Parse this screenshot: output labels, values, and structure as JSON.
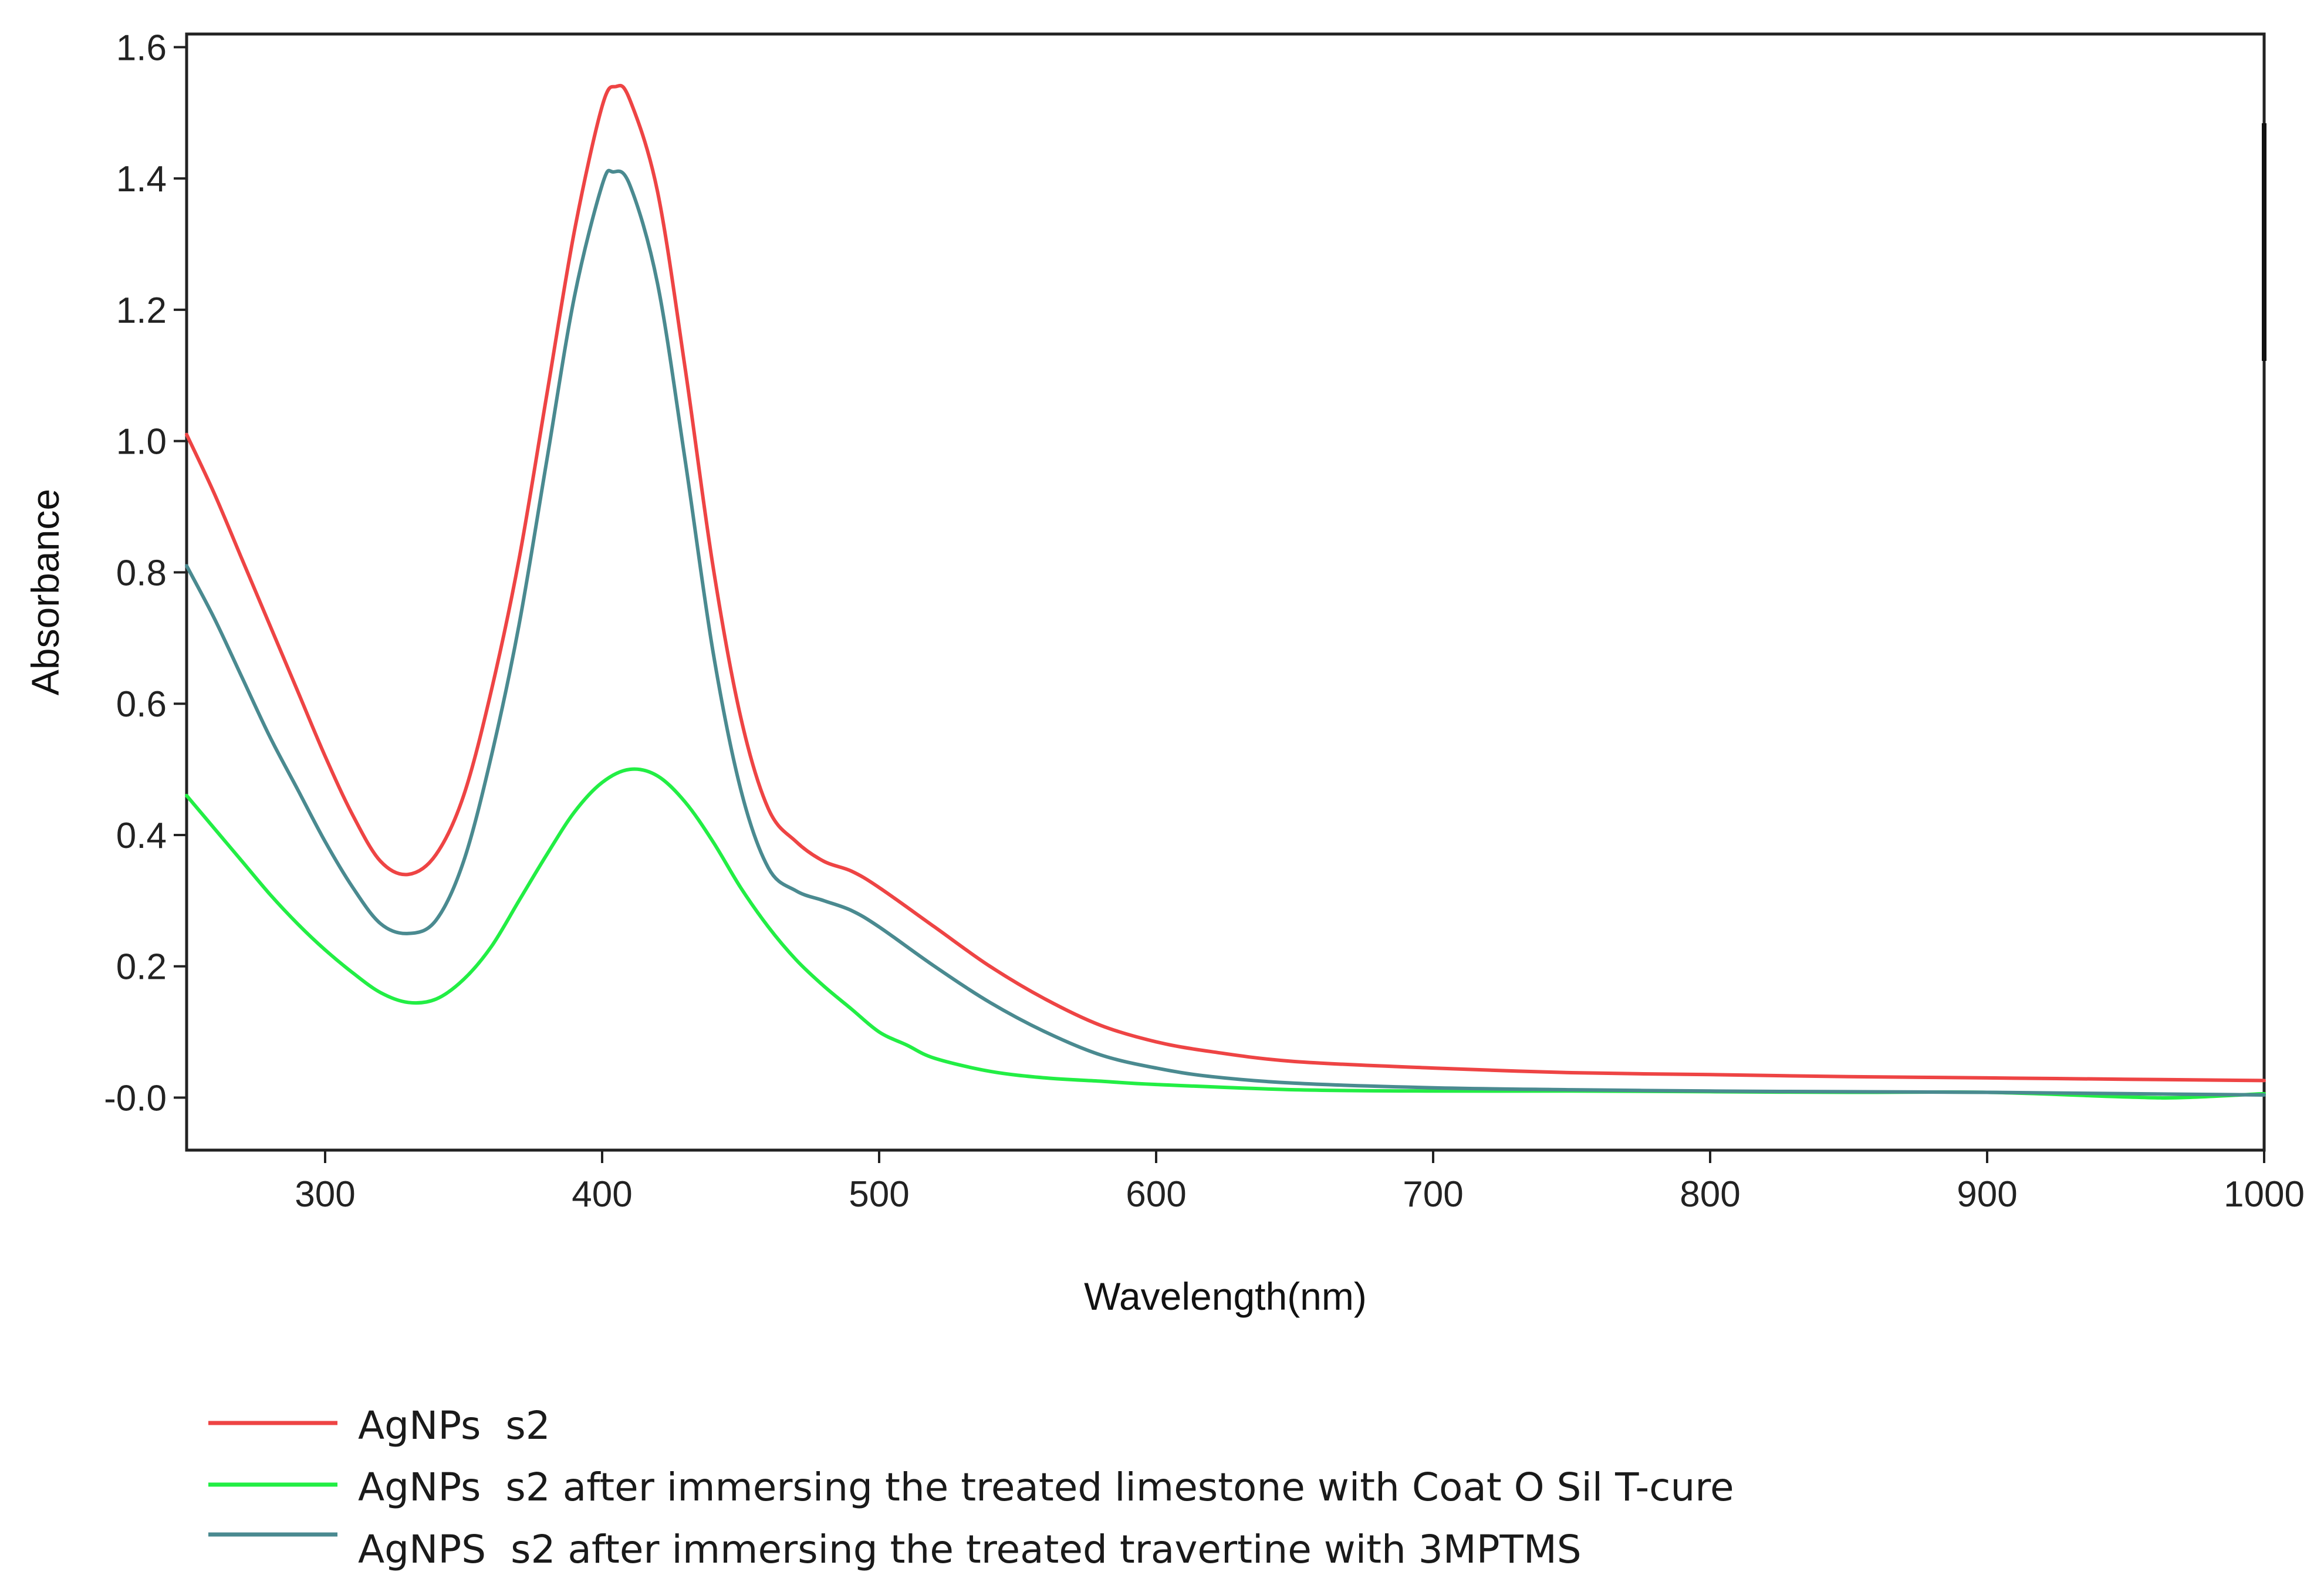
{
  "chart_data": {
    "type": "line",
    "title": "",
    "xlabel": "Wavelength(nm)",
    "ylabel": "Absorbance",
    "xlim": [
      250,
      1000
    ],
    "ylim": [
      -0.08,
      1.62
    ],
    "xticks": [
      300,
      400,
      500,
      600,
      700,
      800,
      900,
      1000
    ],
    "xtick_labels": [
      "300",
      "400",
      "500",
      "600",
      "700",
      "800",
      "900",
      "1000"
    ],
    "yticks": [
      0.0,
      0.2,
      0.4,
      0.6,
      0.8,
      1.0,
      1.2,
      1.4,
      1.6
    ],
    "ytick_labels": [
      "-0.0",
      "0.2",
      "0.4",
      "0.6",
      "0.8",
      "1.0",
      "1.2",
      "1.4",
      "1.6"
    ],
    "grid": false,
    "legend_position": "bottom",
    "series": [
      {
        "name": "AgNPs  s2",
        "color": "#ee4444",
        "points": [
          [
            250,
            1.01
          ],
          [
            260,
            0.92
          ],
          [
            270,
            0.82
          ],
          [
            280,
            0.72
          ],
          [
            290,
            0.62
          ],
          [
            300,
            0.52
          ],
          [
            310,
            0.43
          ],
          [
            320,
            0.36
          ],
          [
            330,
            0.34
          ],
          [
            340,
            0.37
          ],
          [
            350,
            0.46
          ],
          [
            360,
            0.62
          ],
          [
            370,
            0.82
          ],
          [
            380,
            1.07
          ],
          [
            390,
            1.32
          ],
          [
            400,
            1.51
          ],
          [
            405,
            1.54
          ],
          [
            410,
            1.52
          ],
          [
            420,
            1.38
          ],
          [
            430,
            1.11
          ],
          [
            440,
            0.81
          ],
          [
            450,
            0.58
          ],
          [
            460,
            0.44
          ],
          [
            470,
            0.39
          ],
          [
            480,
            0.36
          ],
          [
            490,
            0.345
          ],
          [
            500,
            0.32
          ],
          [
            520,
            0.26
          ],
          [
            540,
            0.2
          ],
          [
            560,
            0.15
          ],
          [
            580,
            0.11
          ],
          [
            600,
            0.085
          ],
          [
            620,
            0.07
          ],
          [
            650,
            0.055
          ],
          [
            700,
            0.045
          ],
          [
            750,
            0.038
          ],
          [
            800,
            0.035
          ],
          [
            850,
            0.032
          ],
          [
            900,
            0.03
          ],
          [
            950,
            0.028
          ],
          [
            1000,
            0.026
          ]
        ]
      },
      {
        "name": "AgNPs  s2 after immersing the treated limestone with Coat O Sil T-cure",
        "color": "#22ee44",
        "points": [
          [
            250,
            0.46
          ],
          [
            260,
            0.41
          ],
          [
            270,
            0.36
          ],
          [
            280,
            0.31
          ],
          [
            290,
            0.265
          ],
          [
            300,
            0.225
          ],
          [
            310,
            0.19
          ],
          [
            320,
            0.16
          ],
          [
            330,
            0.145
          ],
          [
            340,
            0.15
          ],
          [
            350,
            0.18
          ],
          [
            360,
            0.23
          ],
          [
            370,
            0.3
          ],
          [
            380,
            0.37
          ],
          [
            390,
            0.435
          ],
          [
            400,
            0.48
          ],
          [
            410,
            0.5
          ],
          [
            420,
            0.49
          ],
          [
            430,
            0.45
          ],
          [
            440,
            0.39
          ],
          [
            450,
            0.32
          ],
          [
            460,
            0.26
          ],
          [
            470,
            0.21
          ],
          [
            480,
            0.17
          ],
          [
            490,
            0.135
          ],
          [
            500,
            0.1
          ],
          [
            510,
            0.08
          ],
          [
            520,
            0.06
          ],
          [
            540,
            0.04
          ],
          [
            560,
            0.03
          ],
          [
            580,
            0.025
          ],
          [
            600,
            0.02
          ],
          [
            650,
            0.012
          ],
          [
            700,
            0.01
          ],
          [
            750,
            0.01
          ],
          [
            800,
            0.009
          ],
          [
            850,
            0.008
          ],
          [
            900,
            0.008
          ],
          [
            950,
            0.001
          ],
          [
            970,
            0.0
          ],
          [
            1000,
            0.006
          ]
        ]
      },
      {
        "name": "AgNPS  s2 after immersing the treated travertine with 3MPTMS",
        "color": "#4a8a90",
        "points": [
          [
            250,
            0.81
          ],
          [
            260,
            0.73
          ],
          [
            270,
            0.64
          ],
          [
            280,
            0.55
          ],
          [
            290,
            0.47
          ],
          [
            300,
            0.39
          ],
          [
            310,
            0.32
          ],
          [
            320,
            0.265
          ],
          [
            330,
            0.25
          ],
          [
            340,
            0.27
          ],
          [
            350,
            0.36
          ],
          [
            360,
            0.52
          ],
          [
            370,
            0.72
          ],
          [
            380,
            0.97
          ],
          [
            390,
            1.22
          ],
          [
            400,
            1.39
          ],
          [
            404,
            1.41
          ],
          [
            410,
            1.39
          ],
          [
            420,
            1.24
          ],
          [
            430,
            0.97
          ],
          [
            440,
            0.68
          ],
          [
            450,
            0.47
          ],
          [
            460,
            0.35
          ],
          [
            470,
            0.315
          ],
          [
            480,
            0.3
          ],
          [
            490,
            0.285
          ],
          [
            500,
            0.26
          ],
          [
            520,
            0.2
          ],
          [
            540,
            0.145
          ],
          [
            560,
            0.1
          ],
          [
            580,
            0.065
          ],
          [
            600,
            0.045
          ],
          [
            620,
            0.032
          ],
          [
            650,
            0.022
          ],
          [
            700,
            0.015
          ],
          [
            750,
            0.012
          ],
          [
            800,
            0.01
          ],
          [
            850,
            0.009
          ],
          [
            900,
            0.008
          ],
          [
            950,
            0.006
          ],
          [
            1000,
            0.004
          ]
        ]
      }
    ]
  }
}
